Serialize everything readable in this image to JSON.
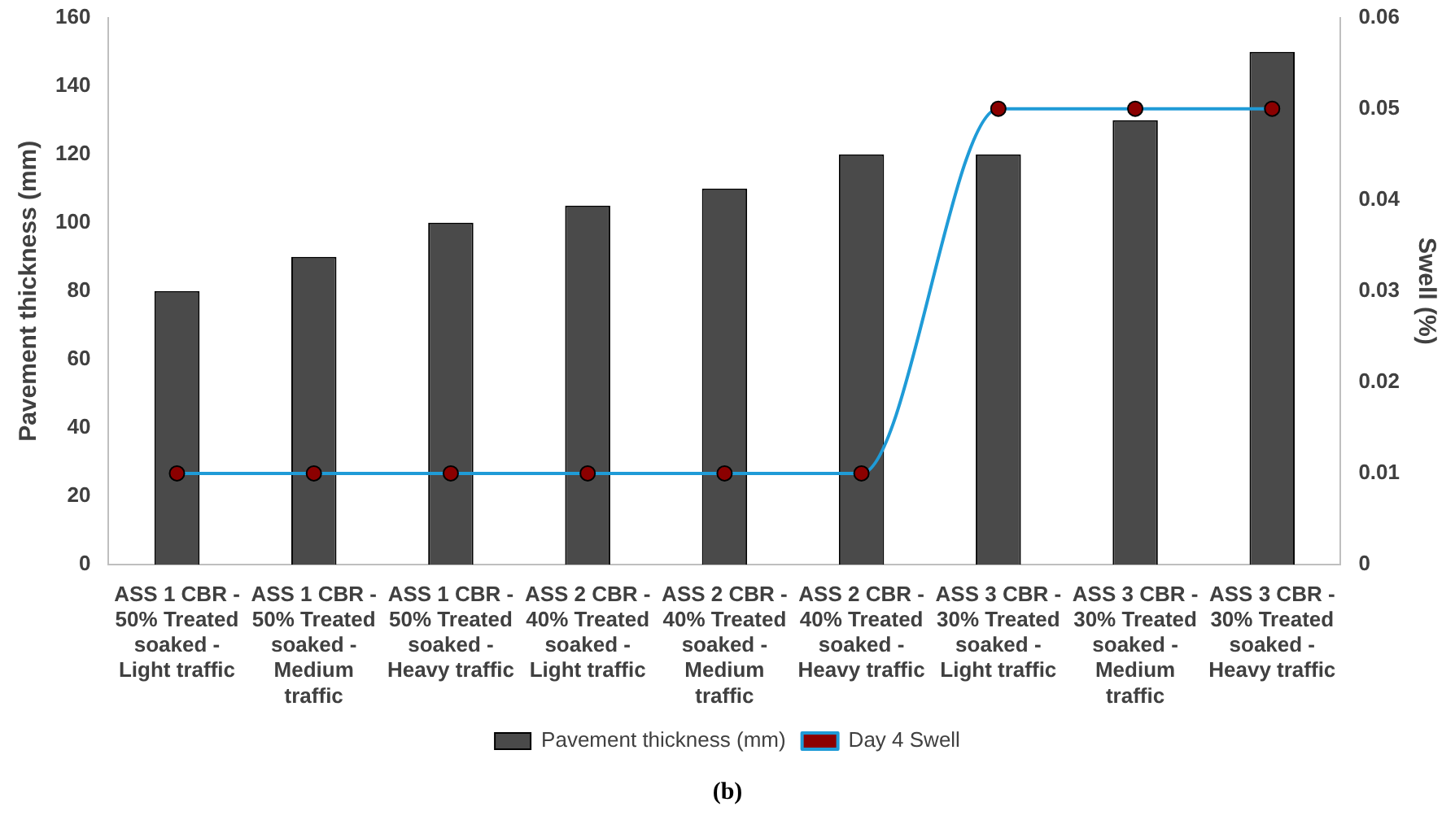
{
  "chart_data": {
    "type": "bar",
    "categories": [
      "ASS 1 CBR - 50% Treated soaked - Light traffic",
      "ASS 1 CBR - 50% Treated soaked - Medium traffic",
      "ASS 1 CBR - 50% Treated soaked - Heavy traffic",
      "ASS 2 CBR - 40% Treated soaked - Light traffic",
      "ASS 2 CBR - 40% Treated soaked - Medium traffic",
      "ASS 2 CBR - 40% Treated soaked - Heavy traffic",
      "ASS 3 CBR - 30% Treated soaked - Light traffic",
      "ASS 3 CBR - 30% Treated soaked - Medium traffic",
      "ASS 3 CBR - 30% Treated soaked - Heavy traffic"
    ],
    "series": [
      {
        "name": "Pavement thickness (mm)",
        "color": "#4a4a4a",
        "values": [
          80,
          90,
          100,
          105,
          110,
          120,
          120,
          130,
          150
        ]
      },
      {
        "name": "Day 4 Swell",
        "type": "line",
        "axis": "y2",
        "color": "#1f9bd7",
        "marker": "circle",
        "values": [
          0.01,
          0.01,
          0.01,
          0.01,
          0.01,
          0.01,
          0.05,
          0.05,
          0.05
        ]
      }
    ],
    "ylabel": "Pavement thickness (mm)",
    "y2label": "Swell (%)",
    "ylim": [
      0,
      160
    ],
    "yticks": [
      0,
      20,
      40,
      60,
      80,
      100,
      120,
      140,
      160
    ],
    "y2lim": [
      0,
      0.06
    ],
    "y2ticks": [
      0,
      0.01,
      0.02,
      0.03,
      0.04,
      0.05,
      0.06
    ],
    "grid": false,
    "legend": "bottom",
    "annotations": [
      "(b)"
    ]
  }
}
